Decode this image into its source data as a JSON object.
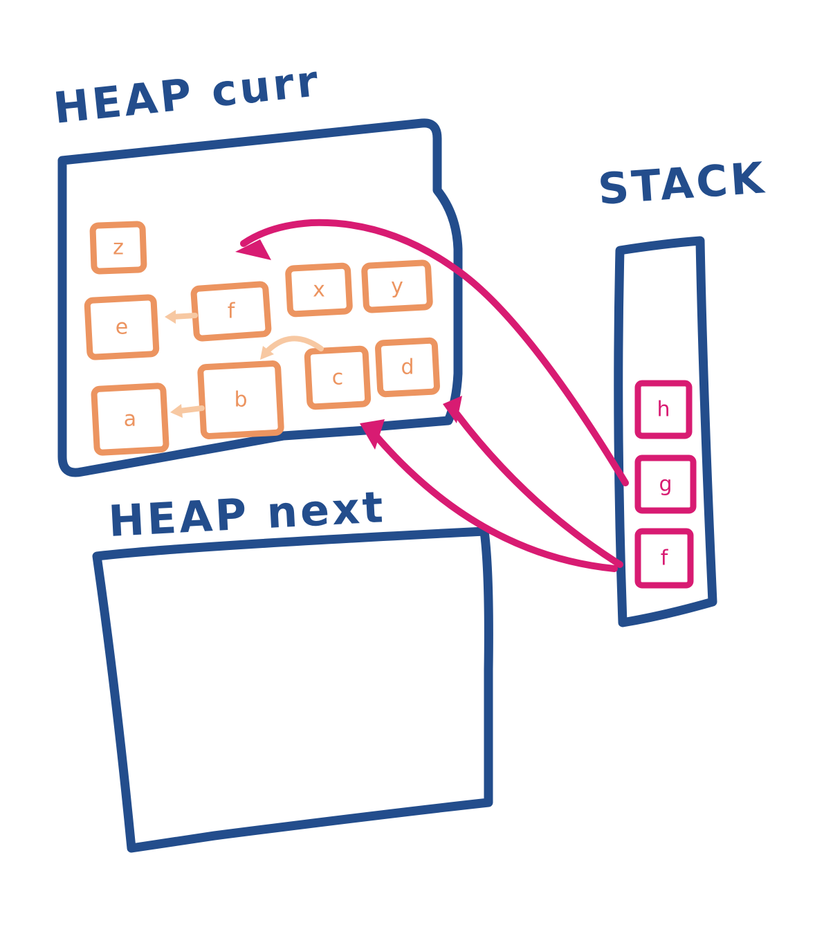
{
  "titles": {
    "heap_curr": "HEAP curr",
    "heap_next": "HEAP next",
    "stack": "STACK"
  },
  "heap_objects": [
    "z",
    "e",
    "f",
    "x",
    "y",
    "c",
    "d",
    "a",
    "b"
  ],
  "stack_slots": [
    "h",
    "g",
    "f"
  ],
  "object_refs": [
    {
      "from": "f",
      "to": "e"
    },
    {
      "from": "c",
      "to": "b"
    },
    {
      "from": "b",
      "to": "a"
    }
  ],
  "stack_refs": [
    {
      "from": "g",
      "to": "heap-empty-slot"
    },
    {
      "from": "f",
      "to": "d"
    },
    {
      "from": "f",
      "to": "c"
    }
  ],
  "colors": {
    "outline": "#234d8c",
    "heap_object": "#ec9460",
    "object_ref": "#f7c8a2",
    "stack_ref": "#d81b72",
    "background": "#ffffff"
  }
}
